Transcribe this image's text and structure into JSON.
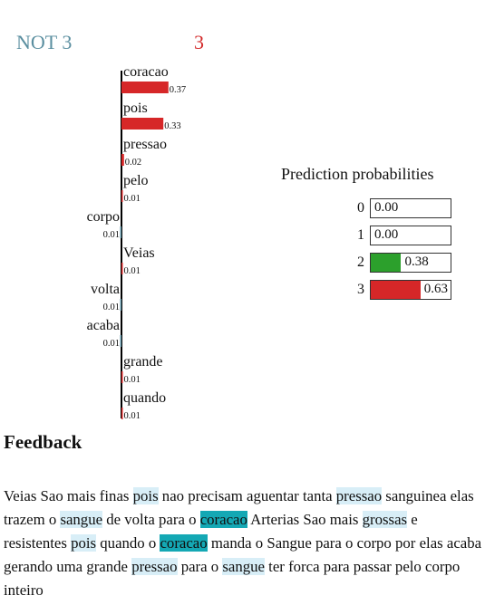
{
  "header": {
    "negative_label": "NOT 3",
    "positive_label": "3"
  },
  "chart_data": {
    "type": "bar",
    "title": "",
    "orientation": "horizontal",
    "categories": [
      "coracao",
      "pois",
      "pressao",
      "pelo",
      "corpo",
      "Veias",
      "volta",
      "acaba",
      "grande",
      "quando"
    ],
    "values": [
      0.37,
      0.33,
      0.02,
      0.01,
      -0.01,
      0.01,
      -0.01,
      -0.01,
      0.01,
      0.01
    ],
    "value_labels": [
      "0.37",
      "0.33",
      "0.02",
      "0.01",
      "0.01",
      "0.01",
      "0.01",
      "0.01",
      "0.01",
      "0.01"
    ],
    "positive_color": "#d62728",
    "negative_color": "#5b8fa0"
  },
  "probabilities": {
    "title": "Prediction probabilities",
    "rows": [
      {
        "label": "0",
        "value": 0.0,
        "text": "0.00",
        "color": "#ffffff"
      },
      {
        "label": "1",
        "value": 0.0,
        "text": "0.00",
        "color": "#ffffff"
      },
      {
        "label": "2",
        "value": 0.38,
        "text": "0.38",
        "color": "#2ca02c"
      },
      {
        "label": "3",
        "value": 0.63,
        "text": "0.63",
        "color": "#d62728"
      }
    ]
  },
  "feedback": {
    "title": "Feedback",
    "tokens": [
      {
        "t": "Veias Sao mais finas "
      },
      {
        "t": "pois",
        "h": "light"
      },
      {
        "t": " nao precisam aguentar tanta "
      },
      {
        "t": "pressao",
        "h": "light"
      },
      {
        "t": " sanguinea elas trazem o "
      },
      {
        "t": "sangue",
        "h": "light"
      },
      {
        "t": " de volta para o "
      },
      {
        "t": "coracao",
        "h": "teal"
      },
      {
        "t": " Arterias Sao mais "
      },
      {
        "t": "grossas",
        "h": "light"
      },
      {
        "t": " e resistentes "
      },
      {
        "t": "pois",
        "h": "light"
      },
      {
        "t": " quando o "
      },
      {
        "t": "coracao",
        "h": "teal"
      },
      {
        "t": " manda o Sangue para o corpo por elas acaba gerando uma grande "
      },
      {
        "t": "pressao",
        "h": "light"
      },
      {
        "t": " para o "
      },
      {
        "t": "sangue",
        "h": "light"
      },
      {
        "t": " ter forca para passar pelo corpo inteiro"
      }
    ]
  }
}
